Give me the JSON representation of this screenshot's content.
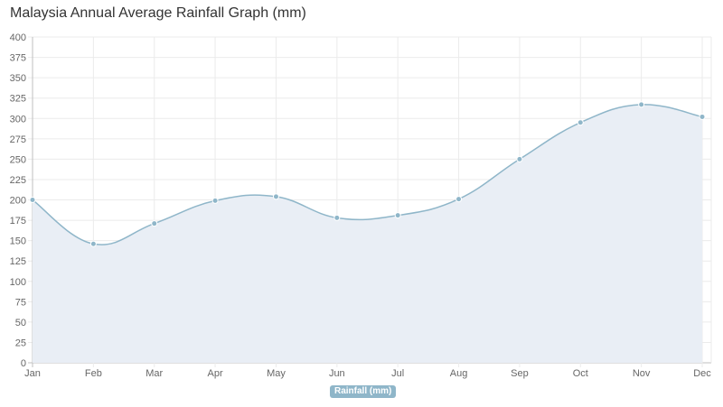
{
  "title": "Malaysia Annual Average Rainfall Graph (mm)",
  "chart_data": {
    "type": "area",
    "title": "Malaysia Annual Average Rainfall Graph (mm)",
    "categories": [
      "Jan",
      "Feb",
      "Mar",
      "Apr",
      "May",
      "Jun",
      "Jul",
      "Aug",
      "Sep",
      "Oct",
      "Nov",
      "Dec"
    ],
    "series": [
      {
        "name": "Rainfall (mm)",
        "values": [
          200,
          146,
          171,
          199,
          204,
          178,
          181,
          201,
          250,
          295,
          317,
          302
        ],
        "line_color": "#8fb6c9",
        "fill_color": "#e9eef5"
      }
    ],
    "ylim": [
      0,
      400
    ],
    "yticks": [
      0,
      25,
      50,
      75,
      100,
      125,
      150,
      175,
      200,
      225,
      250,
      275,
      300,
      325,
      350,
      375,
      400
    ],
    "grid": true,
    "legend": "bottom-center"
  }
}
